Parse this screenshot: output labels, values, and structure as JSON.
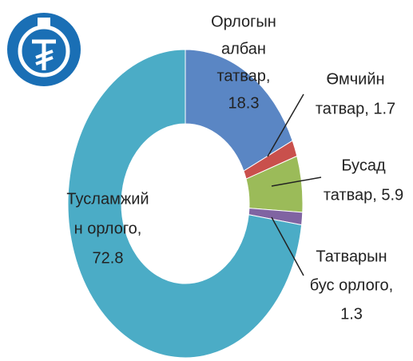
{
  "chart_data": {
    "type": "donut",
    "values": [
      18.3,
      1.7,
      5.9,
      1.3,
      72.8
    ],
    "value_labels": [
      [
        "Орлогын",
        "албан",
        "татвар,",
        "18.3"
      ],
      [
        "Өмчийн",
        "татвар, 1.7"
      ],
      [
        "Бусад",
        "татвар, 5.9"
      ],
      [
        "Татварын",
        "бус орлого,",
        "1.3"
      ],
      [
        "Тусламжий",
        "н орлого,",
        "72.8"
      ]
    ],
    "colors": [
      "#5a86c4",
      "#c9504c",
      "#9bbb59",
      "#8064a2",
      "#4bacc6"
    ]
  }
}
